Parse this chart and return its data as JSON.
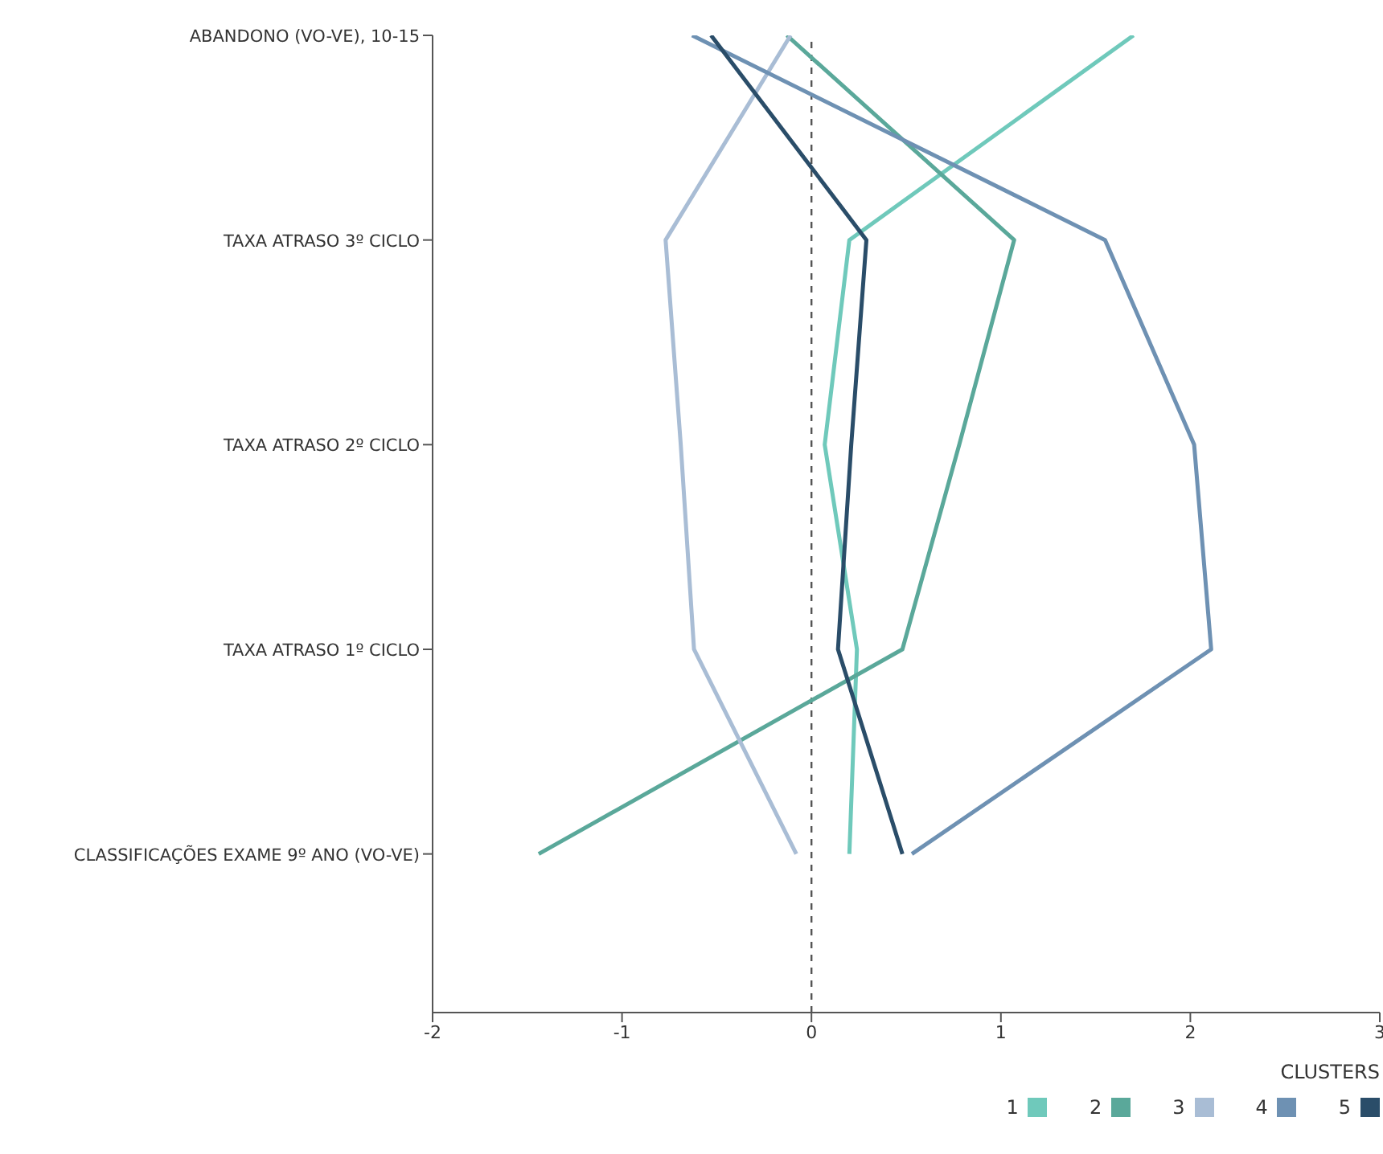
{
  "chart_data": {
    "type": "line",
    "orientation": "horizontal",
    "categories": [
      "ABANDONO (VO-VE), 10-15",
      "TAXA ATRASO 3º CICLO",
      "TAXA ATRASO 2º CICLO",
      "TAXA ATRASO 1º CICLO",
      "CLASSIFICAÇÕES EXAME 9º ANO (VO-VE)"
    ],
    "series": [
      {
        "name": "1",
        "color": "#6fc9bb",
        "values": [
          1.7,
          0.2,
          0.07,
          0.24,
          0.2
        ]
      },
      {
        "name": "2",
        "color": "#5aa89a",
        "values": [
          -0.13,
          1.07,
          0.78,
          0.48,
          -1.44
        ]
      },
      {
        "name": "3",
        "color": "#a9bdd5",
        "values": [
          -0.11,
          -0.77,
          -0.69,
          -0.62,
          -0.08
        ]
      },
      {
        "name": "4",
        "color": "#6e91b3",
        "values": [
          -0.63,
          1.55,
          2.02,
          2.11,
          0.53
        ]
      },
      {
        "name": "5",
        "color": "#2a4d69",
        "values": [
          -0.53,
          0.29,
          0.21,
          0.14,
          0.48
        ]
      }
    ],
    "xlim": [
      -2,
      3
    ],
    "xticks": [
      -2,
      -1,
      0,
      1,
      2,
      3
    ],
    "ref_lines": [
      {
        "axis": "x",
        "value": 0,
        "color": "#555555",
        "line_style": "dashed"
      }
    ],
    "legend": "bottom right",
    "legend_title": "CLUSTERS",
    "marker": "none",
    "line_style": "solid"
  }
}
